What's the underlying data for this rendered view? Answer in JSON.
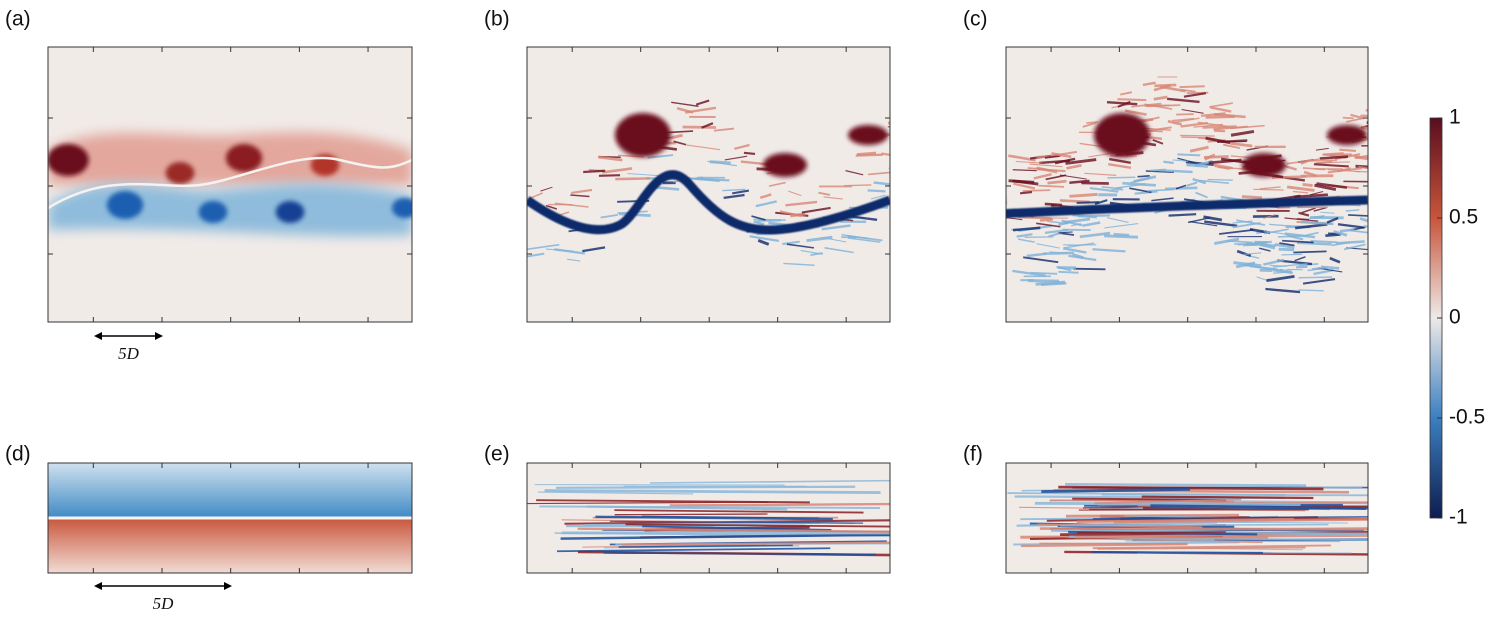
{
  "panels": [
    {
      "label": "(a)"
    },
    {
      "label": "(b)"
    },
    {
      "label": "(c)"
    },
    {
      "label": "(d)"
    },
    {
      "label": "(e)"
    },
    {
      "label": "(f)"
    }
  ],
  "scale_bars": [
    {
      "label": "5D"
    },
    {
      "label": "5D"
    }
  ],
  "colorbar": {
    "ticks": [
      1,
      0.5,
      0,
      -0.5,
      -1
    ]
  }
}
